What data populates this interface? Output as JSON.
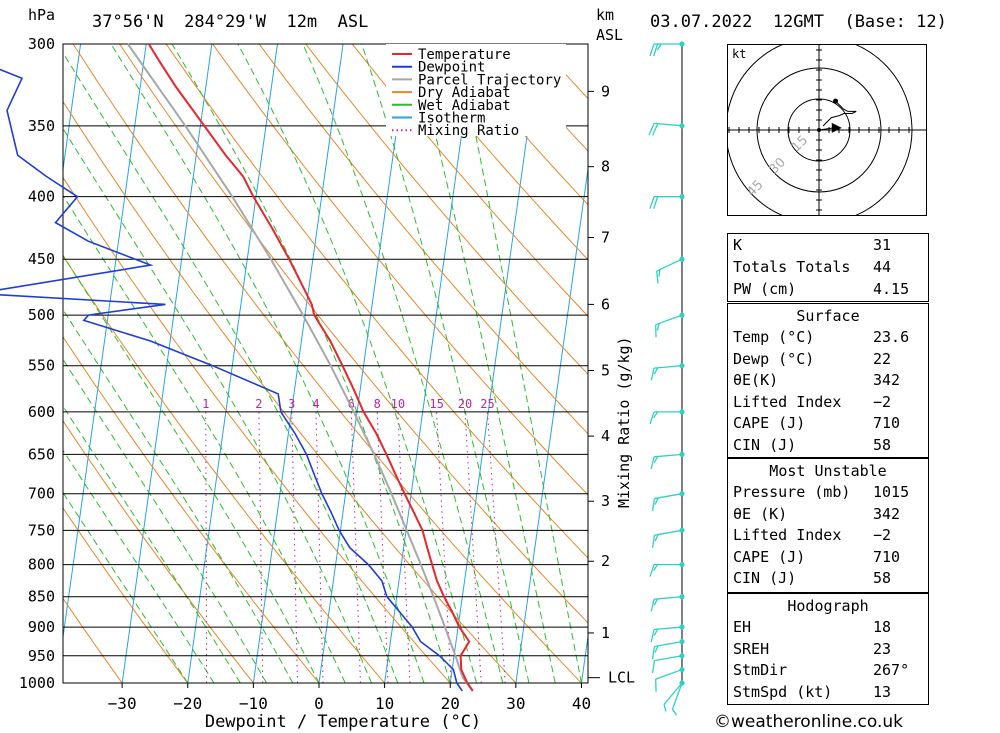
{
  "header": {
    "pressure_unit": "hPa",
    "location": "37°56'N  284°29'W  12m  ASL",
    "km_label": "km",
    "asl_label": "ASL",
    "datetime": "03.07.2022  12GMT  (Base: 12)"
  },
  "chart_data": {
    "type": "line",
    "title": "",
    "xlabel": "Dewpoint / Temperature (°C)",
    "ylabel": "hPa",
    "y_right_label": "Mixing Ratio (g/kg)",
    "y_scale": "log",
    "xlim": [
      -40,
      40
    ],
    "ylim": [
      1000,
      300
    ],
    "x_ticks": [
      -30,
      -20,
      -10,
      0,
      10,
      20,
      30,
      40
    ],
    "x_tick_labels": [
      "−30",
      "−20",
      "−10",
      "0",
      "10",
      "20",
      "30",
      "40"
    ],
    "pressure_ticks": [
      300,
      350,
      400,
      450,
      500,
      550,
      600,
      650,
      700,
      750,
      800,
      850,
      900,
      950,
      1000
    ],
    "km_ticks": [
      {
        "label": "1",
        "p": 910
      },
      {
        "label": "2",
        "p": 795
      },
      {
        "label": "3",
        "p": 710
      },
      {
        "label": "4",
        "p": 628
      },
      {
        "label": "5",
        "p": 555
      },
      {
        "label": "6",
        "p": 490
      },
      {
        "label": "7",
        "p": 432
      },
      {
        "label": "8",
        "p": 378
      },
      {
        "label": "9",
        "p": 328
      }
    ],
    "lcl_label": "LCL",
    "lcl_pressure": 990,
    "mixing_ratio_labels": [
      "1",
      "2",
      "3",
      "4",
      "6",
      "8",
      "10",
      "15",
      "20",
      "25"
    ],
    "mixing_ratio_values": [
      1,
      2,
      3,
      4,
      6,
      8,
      10,
      15,
      20,
      25
    ],
    "legend": [
      "Temperature",
      "Dewpoint",
      "Parcel Trajectory",
      "Dry Adiabat",
      "Wet Adiabat",
      "Isotherm",
      "Mixing Ratio"
    ],
    "legend_position": "top-right",
    "colors": {
      "temperature": "#e8262b",
      "dewpoint": "#1f3dd6",
      "parcel": "#a8a8a8",
      "dry_adiabat": "#e8862a",
      "wet_adiabat": "#2bbd2b",
      "isotherm": "#2aa3e0",
      "mixing_ratio": "#c0259a",
      "wind": "#2fd1c0"
    },
    "series": [
      {
        "name": "Temperature",
        "points": [
          [
            1015,
            23.6
          ],
          [
            1000,
            22.6
          ],
          [
            975,
            21.4
          ],
          [
            950,
            21.0
          ],
          [
            925,
            22.0
          ],
          [
            900,
            20.2
          ],
          [
            875,
            18.8
          ],
          [
            850,
            17.2
          ],
          [
            825,
            15.8
          ],
          [
            800,
            14.7
          ],
          [
            775,
            13.6
          ],
          [
            750,
            12.5
          ],
          [
            725,
            10.8
          ],
          [
            700,
            9.0
          ],
          [
            675,
            7.2
          ],
          [
            650,
            5.4
          ],
          [
            625,
            3.4
          ],
          [
            600,
            1.0
          ],
          [
            575,
            -1.0
          ],
          [
            550,
            -3.2
          ],
          [
            525,
            -5.6
          ],
          [
            500,
            -8.6
          ],
          [
            490,
            -9.2
          ],
          [
            475,
            -10.8
          ],
          [
            450,
            -13.6
          ],
          [
            425,
            -16.8
          ],
          [
            400,
            -20.4
          ],
          [
            385,
            -22.4
          ],
          [
            370,
            -25.5
          ],
          [
            350,
            -29.4
          ],
          [
            325,
            -34.6
          ],
          [
            310,
            -37.6
          ],
          [
            300,
            -39.6
          ]
        ]
      },
      {
        "name": "Dewpoint",
        "points": [
          [
            1015,
            22.0
          ],
          [
            1000,
            21.0
          ],
          [
            975,
            20.2
          ],
          [
            950,
            17.8
          ],
          [
            925,
            14.6
          ],
          [
            900,
            13.0
          ],
          [
            875,
            10.8
          ],
          [
            850,
            8.5
          ],
          [
            825,
            7.4
          ],
          [
            800,
            5.0
          ],
          [
            775,
            1.8
          ],
          [
            750,
            -0.2
          ],
          [
            725,
            -1.8
          ],
          [
            700,
            -3.6
          ],
          [
            675,
            -5.2
          ],
          [
            650,
            -6.8
          ],
          [
            625,
            -9.0
          ],
          [
            600,
            -11.6
          ],
          [
            580,
            -12.4
          ],
          [
            550,
            -23.0
          ],
          [
            525,
            -33.0
          ],
          [
            505,
            -43.6
          ],
          [
            500,
            -43.0
          ],
          [
            490,
            -31.5
          ],
          [
            480,
            -60.5
          ],
          [
            455,
            -34.6
          ],
          [
            435,
            -44.6
          ],
          [
            420,
            -50.0
          ],
          [
            400,
            -47.2
          ],
          [
            385,
            -52.4
          ],
          [
            370,
            -57.2
          ],
          [
            340,
            -59.8
          ],
          [
            320,
            -58.2
          ],
          [
            310,
            -65.0
          ],
          [
            300,
            -70.0
          ]
        ]
      },
      {
        "name": "Parcel Trajectory",
        "points": [
          [
            1015,
            23.6
          ],
          [
            990,
            21.8
          ],
          [
            950,
            20.2
          ],
          [
            900,
            18.0
          ],
          [
            850,
            15.6
          ],
          [
            800,
            13.0
          ],
          [
            750,
            10.1
          ],
          [
            700,
            7.0
          ],
          [
            650,
            3.5
          ],
          [
            600,
            -0.5
          ],
          [
            550,
            -5.0
          ],
          [
            500,
            -10.3
          ],
          [
            450,
            -16.4
          ],
          [
            400,
            -23.6
          ],
          [
            350,
            -32.3
          ],
          [
            300,
            -42.8
          ]
        ]
      }
    ],
    "wind_barbs": [
      {
        "p": 1015,
        "dir": 200,
        "kt": 5
      },
      {
        "p": 1000,
        "dir": 220,
        "kt": 5
      },
      {
        "p": 975,
        "dir": 250,
        "kt": 10
      },
      {
        "p": 950,
        "dir": 260,
        "kt": 10
      },
      {
        "p": 925,
        "dir": 260,
        "kt": 15
      },
      {
        "p": 900,
        "dir": 265,
        "kt": 15
      },
      {
        "p": 850,
        "dir": 265,
        "kt": 15
      },
      {
        "p": 800,
        "dir": 270,
        "kt": 15
      },
      {
        "p": 750,
        "dir": 260,
        "kt": 15
      },
      {
        "p": 700,
        "dir": 260,
        "kt": 15
      },
      {
        "p": 650,
        "dir": 265,
        "kt": 15
      },
      {
        "p": 600,
        "dir": 270,
        "kt": 15
      },
      {
        "p": 550,
        "dir": 265,
        "kt": 15
      },
      {
        "p": 500,
        "dir": 250,
        "kt": 15
      },
      {
        "p": 450,
        "dir": 245,
        "kt": 15
      },
      {
        "p": 400,
        "dir": 270,
        "kt": 20
      },
      {
        "p": 350,
        "dir": 275,
        "kt": 20
      },
      {
        "p": 300,
        "dir": 270,
        "kt": 25
      }
    ]
  },
  "hodograph": {
    "unit_label": "kt",
    "ring_labels": [
      "15",
      "30",
      "45"
    ],
    "trace_kt": [
      [
        2,
        2
      ],
      [
        6,
        6
      ],
      [
        10,
        7
      ],
      [
        12,
        8
      ],
      [
        14,
        8
      ],
      [
        16,
        8
      ],
      [
        18,
        9
      ],
      [
        14,
        9
      ],
      [
        12,
        10
      ],
      [
        8,
        14
      ]
    ],
    "storm_motion_kt": [
      13,
      0.7
    ]
  },
  "indices": [
    {
      "key": "K",
      "value": "31"
    },
    {
      "key": "Totals Totals",
      "value": "44"
    },
    {
      "key": "PW (cm)",
      "value": "4.15"
    }
  ],
  "surface": {
    "title": "Surface",
    "rows": [
      {
        "key": "Temp (°C)",
        "value": "23.6"
      },
      {
        "key": "Dewp (°C)",
        "value": "22"
      },
      {
        "key": "θE(K)",
        "value": "342"
      },
      {
        "key": "Lifted Index",
        "value": "−2"
      },
      {
        "key": "CAPE (J)",
        "value": "710"
      },
      {
        "key": "CIN (J)",
        "value": "58"
      }
    ]
  },
  "most_unstable": {
    "title": "Most Unstable",
    "rows": [
      {
        "key": "Pressure (mb)",
        "value": "1015"
      },
      {
        "key": "θE (K)",
        "value": "342"
      },
      {
        "key": "Lifted Index",
        "value": "−2"
      },
      {
        "key": "CAPE (J)",
        "value": "710"
      },
      {
        "key": "CIN (J)",
        "value": "58"
      }
    ]
  },
  "hodograph_params": {
    "title": "Hodograph",
    "rows": [
      {
        "key": "EH",
        "value": "18"
      },
      {
        "key": "SREH",
        "value": "23"
      },
      {
        "key": "StmDir",
        "value": "267°"
      },
      {
        "key": "StmSpd (kt)",
        "value": "13"
      }
    ]
  },
  "footer": {
    "copyright_symbol": "©",
    "site": "weatheronline.co.uk"
  }
}
